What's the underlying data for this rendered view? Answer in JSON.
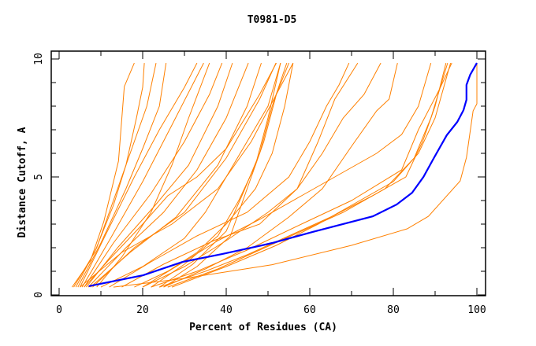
{
  "chart_data": {
    "type": "line",
    "title": "T0981-D5",
    "xlabel": "Percent of Residues (CA)",
    "ylabel": "Distance Cutoff, A",
    "xlim": [
      -1.9,
      102
    ],
    "ylim": [
      0,
      10.33
    ],
    "x_ticks": [
      0,
      20,
      40,
      60,
      80,
      100
    ],
    "x_minor_ticks": [
      10,
      30,
      50,
      70,
      90
    ],
    "y_ticks": [
      0,
      5,
      10
    ],
    "y_minor_ticks": [
      1,
      2,
      3,
      4,
      6,
      7,
      8,
      9
    ],
    "grid": false,
    "colors": {
      "models": "#ff8000",
      "highlight": "#0000ff"
    },
    "highlight_series": {
      "name": "highlighted model",
      "points": [
        [
          7.1,
          0.37
        ],
        [
          20.1,
          0.83
        ],
        [
          29.6,
          1.4
        ],
        [
          39,
          1.73
        ],
        [
          48.1,
          2.08
        ],
        [
          51,
          2.2
        ],
        [
          60.7,
          2.67
        ],
        [
          75.1,
          3.33
        ],
        [
          80.8,
          3.83
        ],
        [
          84.5,
          4.33
        ],
        [
          87.2,
          5.0
        ],
        [
          89.6,
          5.77
        ],
        [
          92.8,
          6.77
        ],
        [
          95.3,
          7.33
        ],
        [
          96.8,
          7.83
        ],
        [
          97.5,
          8.27
        ],
        [
          97.5,
          8.9
        ],
        [
          98.4,
          9.33
        ],
        [
          100,
          9.83
        ]
      ]
    },
    "series": [
      [
        [
          3.1,
          0.33
        ],
        [
          7.5,
          1.45
        ],
        [
          10.7,
          3.11
        ],
        [
          14.2,
          5.67
        ],
        [
          15.6,
          8.83
        ],
        [
          18,
          9.83
        ]
      ],
      [
        [
          3.5,
          0.33
        ],
        [
          8.5,
          1.8
        ],
        [
          13,
          3.8
        ],
        [
          16,
          5.5
        ],
        [
          18.5,
          7.5
        ],
        [
          20,
          8.8
        ],
        [
          20.4,
          9.83
        ]
      ],
      [
        [
          4,
          0.33
        ],
        [
          9,
          2
        ],
        [
          14,
          4.5
        ],
        [
          18,
          6.5
        ],
        [
          21,
          8
        ],
        [
          23.2,
          9.83
        ]
      ],
      [
        [
          4.5,
          0.33
        ],
        [
          10,
          2.2
        ],
        [
          16,
          4.5
        ],
        [
          20,
          6.2
        ],
        [
          24,
          8
        ],
        [
          25.6,
          9.83
        ]
      ],
      [
        [
          5,
          0.33
        ],
        [
          11,
          2.5
        ],
        [
          18,
          5
        ],
        [
          24,
          7
        ],
        [
          30,
          8.8
        ],
        [
          33,
          9.83
        ]
      ],
      [
        [
          5.5,
          0.33
        ],
        [
          12,
          2.3
        ],
        [
          20,
          4.8
        ],
        [
          27,
          7.2
        ],
        [
          34.6,
          9.83
        ]
      ],
      [
        [
          6,
          0.33
        ],
        [
          13,
          2.2
        ],
        [
          22,
          4.3
        ],
        [
          30,
          6.5
        ],
        [
          36,
          8.5
        ],
        [
          39,
          9.83
        ]
      ],
      [
        [
          6.5,
          0.33
        ],
        [
          14,
          2
        ],
        [
          23,
          3.8
        ],
        [
          31,
          5.5
        ],
        [
          38,
          8
        ],
        [
          41.5,
          9.83
        ]
      ],
      [
        [
          7,
          0.33
        ],
        [
          16,
          2
        ],
        [
          25,
          3.5
        ],
        [
          33,
          5.3
        ],
        [
          40,
          7.5
        ],
        [
          45.3,
          9.83
        ]
      ],
      [
        [
          7.5,
          0.33
        ],
        [
          17,
          1.8
        ],
        [
          28,
          3.3
        ],
        [
          38,
          5.5
        ],
        [
          45,
          8
        ],
        [
          48.4,
          9.83
        ]
      ],
      [
        [
          8,
          0.33
        ],
        [
          18,
          2
        ],
        [
          30,
          3.5
        ],
        [
          40,
          5.8
        ],
        [
          48,
          8.3
        ],
        [
          51.9,
          9.83
        ]
      ],
      [
        [
          5,
          0.33
        ],
        [
          15,
          1.8
        ],
        [
          27,
          3
        ],
        [
          38,
          4.5
        ],
        [
          46,
          6.5
        ],
        [
          52,
          8.5
        ],
        [
          56,
          9.83
        ]
      ],
      [
        [
          22,
          0.33
        ],
        [
          30,
          1.3
        ],
        [
          38,
          2.5
        ],
        [
          43,
          4
        ],
        [
          47,
          5.5
        ],
        [
          50,
          7.5
        ],
        [
          53,
          9.83
        ]
      ],
      [
        [
          24,
          0.33
        ],
        [
          32,
          1.3
        ],
        [
          40,
          2.7
        ],
        [
          44,
          4.3
        ],
        [
          48,
          6
        ],
        [
          51,
          8
        ],
        [
          54.5,
          9.83
        ]
      ],
      [
        [
          25,
          0.33
        ],
        [
          33,
          1.2
        ],
        [
          41,
          2.5
        ],
        [
          45,
          4.5
        ],
        [
          49,
          6.5
        ],
        [
          52,
          8.5
        ],
        [
          55,
          9.83
        ]
      ],
      [
        [
          12,
          0.33
        ],
        [
          22,
          1.4
        ],
        [
          33,
          2.5
        ],
        [
          45,
          3.5
        ],
        [
          55,
          5
        ],
        [
          60,
          6.5
        ],
        [
          64,
          8
        ],
        [
          67,
          8.9
        ],
        [
          69.4,
          9.83
        ]
      ],
      [
        [
          15,
          0.33
        ],
        [
          25,
          1.3
        ],
        [
          37,
          2.3
        ],
        [
          48,
          3
        ],
        [
          57,
          4.5
        ],
        [
          62,
          6.5
        ],
        [
          66,
          8.3
        ],
        [
          71.5,
          9.83
        ]
      ],
      [
        [
          20,
          0.33
        ],
        [
          30,
          1.2
        ],
        [
          40,
          2.3
        ],
        [
          50,
          3.5
        ],
        [
          57,
          4.5
        ],
        [
          63,
          6
        ],
        [
          68,
          7.5
        ],
        [
          73,
          8.5
        ],
        [
          77,
          9.83
        ]
      ],
      [
        [
          25,
          0.33
        ],
        [
          35,
          1.1
        ],
        [
          45,
          2
        ],
        [
          55,
          3.3
        ],
        [
          63,
          4.5
        ],
        [
          70,
          6.3
        ],
        [
          76,
          7.8
        ],
        [
          79,
          8.3
        ],
        [
          81,
          9.83
        ]
      ],
      [
        [
          24,
          0.33
        ],
        [
          35,
          1
        ],
        [
          45,
          1.7
        ],
        [
          55,
          2.5
        ],
        [
          65,
          3.3
        ],
        [
          75,
          4.2
        ],
        [
          83,
          5
        ],
        [
          87,
          6.5
        ],
        [
          90,
          8
        ],
        [
          92.6,
          9.83
        ]
      ],
      [
        [
          26,
          0.33
        ],
        [
          38,
          1.1
        ],
        [
          48,
          1.9
        ],
        [
          58,
          2.7
        ],
        [
          68,
          3.5
        ],
        [
          78,
          4.5
        ],
        [
          85,
          5.8
        ],
        [
          89,
          7.5
        ],
        [
          93,
          9.83
        ]
      ],
      [
        [
          27,
          0.33
        ],
        [
          40,
          1.2
        ],
        [
          52,
          2.1
        ],
        [
          62,
          3
        ],
        [
          72,
          4
        ],
        [
          80,
          4.8
        ],
        [
          86,
          6
        ],
        [
          90,
          7.5
        ],
        [
          93.7,
          9.83
        ]
      ],
      [
        [
          22,
          0.33
        ],
        [
          33,
          1
        ],
        [
          45,
          1.9
        ],
        [
          58,
          3
        ],
        [
          70,
          4
        ],
        [
          82,
          5.3
        ],
        [
          86,
          7
        ],
        [
          91,
          8.7
        ],
        [
          94,
          9.83
        ]
      ],
      [
        [
          13,
          0.33
        ],
        [
          30,
          0.7
        ],
        [
          51,
          1.28
        ],
        [
          70,
          2.1
        ],
        [
          83.3,
          2.8
        ],
        [
          88.4,
          3.33
        ],
        [
          96,
          4.83
        ],
        [
          97.5,
          5.83
        ],
        [
          99.1,
          7.8
        ],
        [
          100,
          8.1
        ],
        [
          100,
          9.83
        ]
      ],
      [
        [
          10,
          0.33
        ],
        [
          20,
          1.2
        ],
        [
          30,
          2.4
        ],
        [
          35,
          3.5
        ],
        [
          40,
          5
        ],
        [
          45,
          6.5
        ],
        [
          50,
          8
        ],
        [
          53,
          9.83
        ]
      ],
      [
        [
          6,
          0.33
        ],
        [
          12,
          1.5
        ],
        [
          20,
          3
        ],
        [
          26,
          4.2
        ],
        [
          33,
          5
        ],
        [
          40,
          6.2
        ],
        [
          48,
          8.5
        ],
        [
          52,
          9.83
        ]
      ],
      [
        [
          18,
          0.33
        ],
        [
          26,
          1
        ],
        [
          33,
          1.8
        ],
        [
          40,
          3
        ],
        [
          47,
          4.5
        ],
        [
          51,
          6
        ],
        [
          54,
          8
        ],
        [
          56,
          9.83
        ]
      ],
      [
        [
          9,
          0.33
        ],
        [
          15,
          1.6
        ],
        [
          22,
          3.5
        ],
        [
          27,
          5.5
        ],
        [
          31,
          7.5
        ],
        [
          36,
          9.83
        ]
      ],
      [
        [
          20,
          0.33
        ],
        [
          28,
          1.2
        ],
        [
          38,
          2.3
        ],
        [
          48,
          3.2
        ],
        [
          58,
          4.2
        ],
        [
          68,
          5.2
        ],
        [
          76,
          6
        ],
        [
          82,
          6.8
        ],
        [
          86,
          8
        ],
        [
          89,
          9.83
        ]
      ]
    ]
  }
}
